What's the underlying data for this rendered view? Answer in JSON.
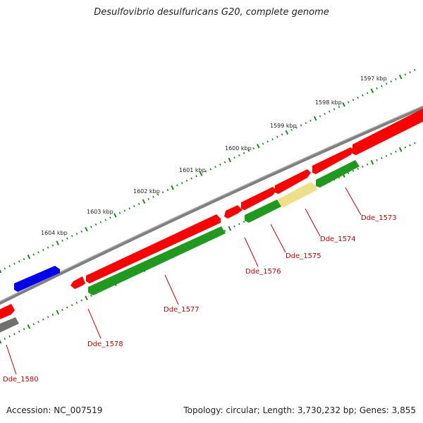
{
  "title": "Desulfovibrio desulfuricans G20, complete genome",
  "footer": {
    "accession": "Accession: NC_007519",
    "stats": "Topology: circular; Length: 3,730,232 bp; Genes: 3,855"
  },
  "colors": {
    "backbone": "#7f7f7f",
    "ruler_ticks": "#1a8a1a",
    "cds_forward": "#ff0000",
    "cds_reverse_strand_feature": "#1f9a1f",
    "other_feature_blue": "#0000ee",
    "pseudo_feature_pale": "#eee08a",
    "gray_feature": "#707070",
    "label": "#cc0000"
  },
  "ruler_labels": [
    "1597 kbp",
    "1598 kbp",
    "1599 kbp",
    "1600 kbp",
    "1601 kbp",
    "1602 kbp",
    "1603 kbp",
    "1604 kbp"
  ],
  "gene_labels": [
    "Dde_1573",
    "Dde_1574",
    "Dde_1575",
    "Dde_1576",
    "Dde_1577",
    "Dde_1578",
    "Dde_1580"
  ]
}
